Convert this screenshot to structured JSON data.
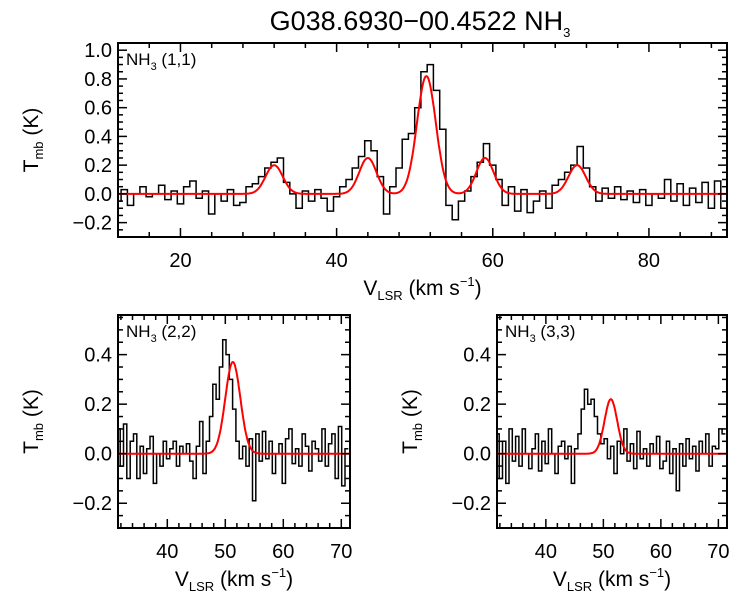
{
  "title": {
    "main": "G038.6930−00.4522 NH",
    "sub": "3"
  },
  "axis_text": {
    "x_v": "V",
    "x_sub": "LSR",
    "x_unit": " (km s",
    "x_sup": "−1",
    "x_close": ")",
    "y_t": "T",
    "y_sub": "mb",
    "y_unit": " (K)"
  },
  "colors": {
    "observed": "#000000",
    "fit": "#ff0000"
  },
  "chart_data": [
    {
      "type": "line",
      "label": {
        "mol": "NH",
        "sub": "3",
        "trans": " (1,1)"
      },
      "xlabel": "VLSR (km s-1)",
      "ylabel": "Tmb (K)",
      "xlim": [
        12,
        90
      ],
      "ylim": [
        -0.3,
        1.05
      ],
      "xticks": [
        20,
        40,
        60,
        80
      ],
      "yticks": [
        -0.2,
        0.0,
        0.2,
        0.4,
        0.6,
        0.8,
        1.0
      ],
      "ytick_labels": [
        "−0.2",
        "0.0",
        "0.2",
        "0.4",
        "0.6",
        "0.8",
        "1.0"
      ],
      "spectrum": {
        "x_start": 12,
        "step": 0.8,
        "values": [
          -0.05,
          0.03,
          -0.08,
          0.0,
          0.05,
          -0.02,
          0.0,
          0.06,
          -0.04,
          0.02,
          -0.07,
          0.05,
          0.09,
          -0.03,
          0.02,
          -0.14,
          0.0,
          -0.05,
          0.03,
          -0.08,
          -0.06,
          0.05,
          0.07,
          0.12,
          0.18,
          0.22,
          0.25,
          0.08,
          0.0,
          -0.1,
          0.02,
          -0.05,
          0.03,
          -0.03,
          -0.12,
          -0.02,
          0.05,
          0.1,
          0.18,
          0.26,
          0.37,
          0.3,
          0.12,
          -0.14,
          0.05,
          0.18,
          0.38,
          0.42,
          0.6,
          0.85,
          0.9,
          0.72,
          0.45,
          -0.08,
          -0.18,
          -0.05,
          0.02,
          0.12,
          0.22,
          0.35,
          0.2,
          0.1,
          -0.08,
          0.05,
          -0.12,
          0.03,
          -0.13,
          -0.05,
          0.02,
          -0.1,
          0.06,
          0.1,
          0.15,
          0.2,
          0.33,
          0.18,
          0.05,
          -0.05,
          0.04,
          -0.03,
          0.05,
          -0.04,
          0.02,
          -0.06,
          0.03,
          -0.08,
          0.0,
          -0.03,
          0.1,
          -0.05,
          0.07,
          -0.08,
          0.04,
          -0.06,
          0.08,
          -0.1,
          0.09,
          -0.1
        ]
      },
      "fit_gaussians": [
        {
          "amp": 0.2,
          "center": 32.0,
          "sigma": 1.1
        },
        {
          "amp": 0.25,
          "center": 44.0,
          "sigma": 1.1
        },
        {
          "amp": 0.82,
          "center": 51.5,
          "sigma": 1.2
        },
        {
          "amp": 0.25,
          "center": 59.0,
          "sigma": 1.1
        },
        {
          "amp": 0.2,
          "center": 70.8,
          "sigma": 1.1
        }
      ]
    },
    {
      "type": "line",
      "label": {
        "mol": "NH",
        "sub": "3",
        "trans": " (2,2)"
      },
      "xlabel": "VLSR (km s-1)",
      "ylabel": "Tmb (K)",
      "xlim": [
        31.5,
        71.5
      ],
      "ylim": [
        -0.3,
        0.56
      ],
      "xticks": [
        40,
        50,
        60,
        70
      ],
      "yticks": [
        -0.2,
        0.0,
        0.2,
        0.4
      ],
      "ytick_labels": [
        "−0.2",
        "0.0",
        "0.2",
        "0.4"
      ],
      "spectrum": {
        "x_start": 31.6,
        "step": 0.57,
        "values": [
          0.1,
          -0.05,
          0.12,
          -0.1,
          0.05,
          0.08,
          -0.1,
          0.03,
          -0.08,
          0.02,
          0.07,
          -0.12,
          0.0,
          -0.05,
          0.05,
          -0.02,
          0.02,
          0.05,
          -0.05,
          0.03,
          0.0,
          0.04,
          -0.03,
          -0.1,
          0.03,
          0.13,
          -0.08,
          0.05,
          0.15,
          0.28,
          0.22,
          0.35,
          0.46,
          0.4,
          0.3,
          0.18,
          0.05,
          -0.02,
          0.03,
          -0.05,
          0.06,
          -0.19,
          0.08,
          -0.03,
          0.09,
          -0.02,
          0.05,
          -0.08,
          0.0,
          0.04,
          -0.12,
          0.06,
          0.1,
          -0.04,
          0.02,
          -0.05,
          0.08,
          0.03,
          -0.07,
          0.05,
          0.02,
          -0.03,
          0.1,
          -0.05,
          0.04,
          0.08,
          -0.1,
          0.11,
          -0.13,
          0.02
        ]
      },
      "fit_gaussians": [
        {
          "amp": 0.37,
          "center": 51.3,
          "sigma": 1.3
        }
      ]
    },
    {
      "type": "line",
      "label": {
        "mol": "NH",
        "sub": "3",
        "trans": " (3,3)"
      },
      "xlabel": "VLSR (km s-1)",
      "ylabel": "Tmb (K)",
      "xlim": [
        31.5,
        71.5
      ],
      "ylim": [
        -0.3,
        0.56
      ],
      "xticks": [
        40,
        50,
        60,
        70
      ],
      "yticks": [
        -0.2,
        0.0,
        0.2,
        0.4
      ],
      "ytick_labels": [
        "−0.2",
        "0.0",
        "0.2",
        "0.4"
      ],
      "spectrum": {
        "x_start": 31.6,
        "step": 0.57,
        "values": [
          0.08,
          -0.1,
          0.05,
          -0.12,
          0.1,
          -0.03,
          0.07,
          -0.05,
          0.1,
          0.0,
          -0.06,
          0.02,
          0.08,
          -0.07,
          0.05,
          -0.04,
          0.1,
          0.0,
          -0.08,
          0.03,
          0.05,
          -0.02,
          0.03,
          -0.12,
          0.02,
          0.08,
          0.18,
          0.26,
          0.2,
          0.22,
          0.15,
          0.08,
          0.04,
          0.06,
          -0.02,
          0.03,
          -0.08,
          0.05,
          0.0,
          0.1,
          -0.03,
          0.04,
          -0.06,
          0.09,
          -0.02,
          0.02,
          -0.05,
          0.04,
          0.0,
          0.07,
          -0.06,
          -0.03,
          0.05,
          -0.08,
          0.02,
          -0.15,
          0.04,
          -0.05,
          0.06,
          -0.02,
          0.03,
          -0.07,
          0.05,
          0.0,
          0.08,
          -0.05,
          0.03,
          0.02,
          0.1,
          0.08
        ]
      },
      "fit_gaussians": [
        {
          "amp": 0.22,
          "center": 51.3,
          "sigma": 1.1
        }
      ]
    }
  ]
}
